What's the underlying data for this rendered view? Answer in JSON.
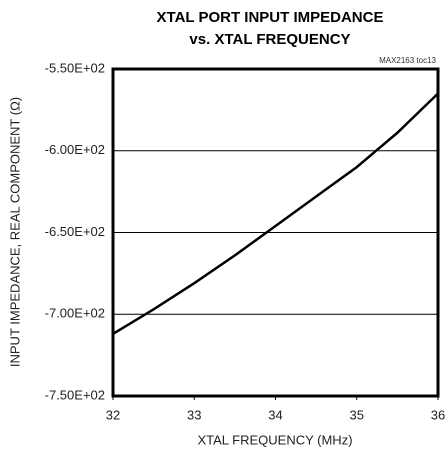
{
  "chart_data": {
    "type": "line",
    "title": [
      "XTAL PORT INPUT IMPEDANCE",
      "vs. XTAL FREQUENCY"
    ],
    "annotation": "MAX2163 toc13",
    "x_label": "XTAL FREQUENCY (MHz)",
    "y_label": "INPUT IMPEDANCE, REAL COMPONENT (Ω)",
    "x": [
      32,
      32.5,
      33,
      33.5,
      34,
      34.5,
      35,
      35.5,
      36
    ],
    "series": [
      {
        "name": "Real component",
        "color": "#000000",
        "values": [
          -712,
          -697,
          -681,
          -664,
          -646,
          -628,
          -610,
          -589,
          -565
        ]
      }
    ],
    "xlim": [
      32,
      36
    ],
    "xticks": [
      32,
      33,
      34,
      35,
      36
    ],
    "ylim": [
      -750,
      -550
    ],
    "yticks": [
      {
        "value": -750,
        "label": "-7.50E+02"
      },
      {
        "value": -700,
        "label": "-7.00E+02"
      },
      {
        "value": -650,
        "label": "-6.50E+02"
      },
      {
        "value": -600,
        "label": "-6.00E+02"
      },
      {
        "value": -550,
        "label": "-5.50E+02"
      }
    ],
    "grid": true
  }
}
